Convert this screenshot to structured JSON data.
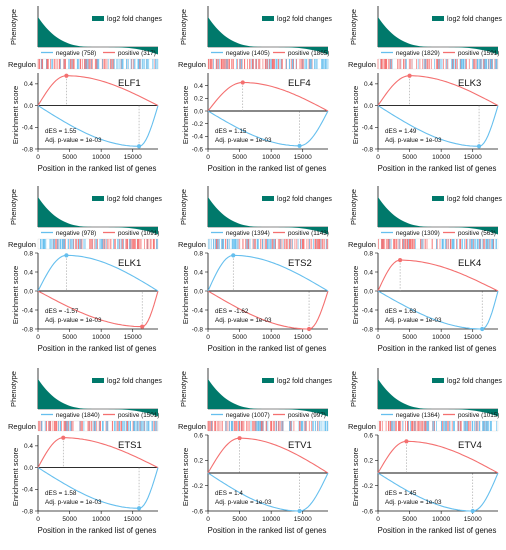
{
  "colors": {
    "phenotype": "#00796b",
    "negative": "#66bfee",
    "positive": "#f47070",
    "axis": "#111111",
    "guide": "#9e9e9e"
  },
  "labels": {
    "phenotype": "Phenotype",
    "regulon": "Regulon",
    "enrichment": "Enrichment score",
    "xlabel": "Position in the ranked list of genes",
    "legend_phenotype": "log2 fold changes",
    "negative": "negative",
    "positive": "positive",
    "adj_p": "Adj. p-value = 1e-03"
  },
  "chart_data": [
    {
      "type": "line",
      "title": "ELF1",
      "dES": "1.55",
      "negative_count": 758,
      "positive_count": 317,
      "xlim": [
        0,
        19000
      ],
      "x_ticks": [
        0,
        5000,
        10000,
        15000
      ],
      "ylim": [
        -0.8,
        0.6
      ],
      "y_ticks": [
        -0.8,
        -0.4,
        0.0,
        0.4
      ],
      "positive_curve": {
        "peak_x": 4500,
        "peak_y": 0.55
      },
      "negative_curve": {
        "peak_x": 16000,
        "peak_y": -0.75
      }
    },
    {
      "type": "line",
      "title": "ELF4",
      "dES": "1.15",
      "negative_count": 1405,
      "positive_count": 1865,
      "xlim": [
        0,
        19000
      ],
      "x_ticks": [
        0,
        5000,
        10000,
        15000
      ],
      "ylim": [
        -0.6,
        0.6
      ],
      "y_ticks": [
        -0.6,
        -0.4,
        -0.2,
        0.0,
        0.2,
        0.4
      ],
      "positive_curve": {
        "peak_x": 5500,
        "peak_y": 0.45
      },
      "negative_curve": {
        "peak_x": 14500,
        "peak_y": -0.55
      }
    },
    {
      "type": "line",
      "title": "ELK3",
      "dES": "1.49",
      "negative_count": 1829,
      "positive_count": 1591,
      "xlim": [
        0,
        19000
      ],
      "x_ticks": [
        0,
        5000,
        10000,
        15000
      ],
      "ylim": [
        -0.8,
        0.6
      ],
      "y_ticks": [
        -0.8,
        -0.4,
        0.0,
        0.4
      ],
      "positive_curve": {
        "peak_x": 5000,
        "peak_y": 0.55
      },
      "negative_curve": {
        "peak_x": 16000,
        "peak_y": -0.75
      }
    },
    {
      "type": "line",
      "title": "ELK1",
      "dES": "-1.57",
      "negative_count": 978,
      "positive_count": 1091,
      "xlim": [
        0,
        19000
      ],
      "x_ticks": [
        0,
        5000,
        10000,
        15000
      ],
      "ylim": [
        -0.8,
        0.8
      ],
      "y_ticks": [
        -0.8,
        -0.4,
        0.0,
        0.4,
        0.8
      ],
      "positive_curve": {
        "peak_x": 16500,
        "peak_y": -0.75
      },
      "negative_curve": {
        "peak_x": 4500,
        "peak_y": 0.75
      }
    },
    {
      "type": "line",
      "title": "ETS2",
      "dES": "-1.62",
      "negative_count": 1394,
      "positive_count": 1143,
      "xlim": [
        0,
        19000
      ],
      "x_ticks": [
        0,
        5000,
        10000,
        15000
      ],
      "ylim": [
        -0.8,
        0.8
      ],
      "y_ticks": [
        -0.8,
        -0.4,
        0.0,
        0.4,
        0.8
      ],
      "positive_curve": {
        "peak_x": 16000,
        "peak_y": -0.8
      },
      "negative_curve": {
        "peak_x": 4000,
        "peak_y": 0.75
      }
    },
    {
      "type": "line",
      "title": "ELK4",
      "dES": "1.63",
      "negative_count": 1309,
      "positive_count": 563,
      "xlim": [
        0,
        19000
      ],
      "x_ticks": [
        0,
        5000,
        10000,
        15000
      ],
      "ylim": [
        -0.8,
        0.8
      ],
      "y_ticks": [
        -0.8,
        -0.4,
        0.0,
        0.4,
        0.8
      ],
      "positive_curve": {
        "peak_x": 3500,
        "peak_y": 0.65
      },
      "negative_curve": {
        "peak_x": 16500,
        "peak_y": -0.8
      }
    },
    {
      "type": "line",
      "title": "ETS1",
      "dES": "1.58",
      "negative_count": 1840,
      "positive_count": 1501,
      "xlim": [
        0,
        19000
      ],
      "x_ticks": [
        0,
        5000,
        10000,
        15000
      ],
      "ylim": [
        -0.8,
        0.6
      ],
      "y_ticks": [
        -0.8,
        -0.4,
        0.0,
        0.4
      ],
      "positive_curve": {
        "peak_x": 4000,
        "peak_y": 0.55
      },
      "negative_curve": {
        "peak_x": 16000,
        "peak_y": -0.75
      }
    },
    {
      "type": "line",
      "title": "ETV1",
      "dES": "1.4",
      "negative_count": 1007,
      "positive_count": 997,
      "xlim": [
        0,
        19000
      ],
      "x_ticks": [
        0,
        5000,
        10000,
        15000
      ],
      "ylim": [
        -0.6,
        0.6
      ],
      "y_ticks": [
        -0.6,
        -0.2,
        0.2,
        0.6
      ],
      "positive_curve": {
        "peak_x": 5000,
        "peak_y": 0.55
      },
      "negative_curve": {
        "peak_x": 14500,
        "peak_y": -0.6
      }
    },
    {
      "type": "line",
      "title": "ETV4",
      "dES": "1.45",
      "negative_count": 1364,
      "positive_count": 1015,
      "xlim": [
        0,
        19000
      ],
      "x_ticks": [
        0,
        5000,
        10000,
        15000
      ],
      "ylim": [
        -0.6,
        0.6
      ],
      "y_ticks": [
        -0.6,
        -0.2,
        0.2,
        0.6
      ],
      "positive_curve": {
        "peak_x": 4500,
        "peak_y": 0.5
      },
      "negative_curve": {
        "peak_x": 15000,
        "peak_y": -0.6
      }
    }
  ]
}
